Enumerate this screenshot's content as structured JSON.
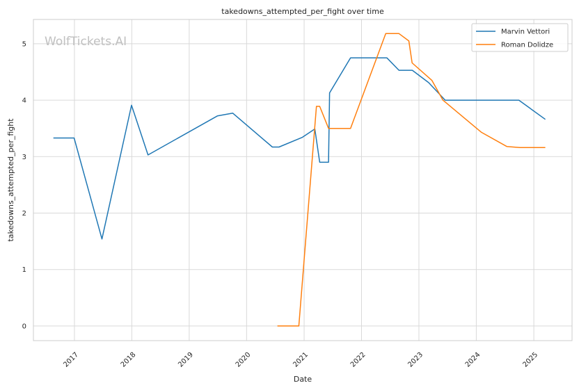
{
  "chart_data": {
    "type": "line",
    "title": "takedowns_attempted_per_fight over time",
    "xlabel": "Date",
    "ylabel": "takedowns_attempted_per_fight",
    "watermark": "WolfTickets.AI",
    "xlim": [
      "2016-04-15",
      "2025-09-01"
    ],
    "ylim": [
      -0.26,
      5.43
    ],
    "yticks": [
      0,
      1,
      2,
      3,
      4,
      5
    ],
    "xticks": [
      "2017",
      "2018",
      "2019",
      "2020",
      "2021",
      "2022",
      "2023",
      "2024",
      "2025"
    ],
    "grid": true,
    "legend_position": "top-right",
    "series": [
      {
        "name": "Marvin Vettori",
        "color": "#1f77b4",
        "points": [
          [
            "2016-08-20",
            3.33
          ],
          [
            "2016-12-30",
            3.33
          ],
          [
            "2017-06-25",
            1.54
          ],
          [
            "2017-12-30",
            3.91
          ],
          [
            "2018-04-14",
            3.03
          ],
          [
            "2019-06-29",
            3.72
          ],
          [
            "2019-10-05",
            3.77
          ],
          [
            "2020-06-13",
            3.17
          ],
          [
            "2020-07-25",
            3.17
          ],
          [
            "2020-12-19",
            3.34
          ],
          [
            "2021-03-10",
            3.49
          ],
          [
            "2021-04-10",
            2.9
          ],
          [
            "2021-06-05",
            2.9
          ],
          [
            "2021-06-12",
            4.13
          ],
          [
            "2021-10-23",
            4.75
          ],
          [
            "2022-06-11",
            4.75
          ],
          [
            "2022-08-27",
            4.53
          ],
          [
            "2022-11-20",
            4.53
          ],
          [
            "2023-03-04",
            4.31
          ],
          [
            "2023-06-17",
            4.0
          ],
          [
            "2024-09-28",
            4.0
          ],
          [
            "2025-03-15",
            3.66
          ]
        ]
      },
      {
        "name": "Roman Dolidze",
        "color": "#ff7f0e",
        "points": [
          [
            "2020-07-15",
            0.0
          ],
          [
            "2020-11-28",
            0.0
          ],
          [
            "2021-03-20",
            3.89
          ],
          [
            "2021-04-10",
            3.89
          ],
          [
            "2021-06-05",
            3.5
          ],
          [
            "2021-10-23",
            3.5
          ],
          [
            "2022-06-04",
            5.18
          ],
          [
            "2022-08-27",
            5.18
          ],
          [
            "2022-10-29",
            5.05
          ],
          [
            "2022-11-19",
            4.66
          ],
          [
            "2023-03-25",
            4.35
          ],
          [
            "2023-06-03",
            4.0
          ],
          [
            "2024-02-03",
            3.43
          ],
          [
            "2024-07-13",
            3.18
          ],
          [
            "2024-10-05",
            3.16
          ],
          [
            "2025-03-15",
            3.16
          ]
        ]
      }
    ]
  }
}
